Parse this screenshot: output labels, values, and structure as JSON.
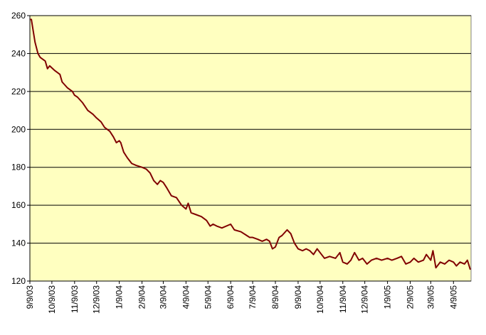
{
  "chart_data": {
    "type": "line",
    "x": [
      "9/9/03",
      "9/11/03",
      "9/16/03",
      "9/20/03",
      "9/23/03",
      "9/30/03",
      "10/3/03",
      "10/6/03",
      "10/13/03",
      "10/20/03",
      "10/23/03",
      "10/30/03",
      "11/6/03",
      "11/9/03",
      "11/13/03",
      "11/20/03",
      "11/27/03",
      "12/4/03",
      "12/9/03",
      "12/15/03",
      "12/20/03",
      "12/27/03",
      "1/1/04",
      "1/5/04",
      "1/9/04",
      "1/11/04",
      "1/15/04",
      "1/20/04",
      "1/26/04",
      "2/1/04",
      "2/9/04",
      "2/15/04",
      "2/20/04",
      "2/25/04",
      "3/1/04",
      "3/5/04",
      "3/9/04",
      "3/14/04",
      "3/20/04",
      "3/27/04",
      "4/3/04",
      "4/9/04",
      "4/12/04",
      "4/16/04",
      "4/23/04",
      "4/30/04",
      "5/7/04",
      "5/12/04",
      "5/16/04",
      "5/21/04",
      "5/28/04",
      "6/9/04",
      "6/14/04",
      "6/23/04",
      "7/1/04",
      "7/5/04",
      "7/9/04",
      "7/16/04",
      "7/22/04",
      "7/28/04",
      "8/1/04",
      "8/5/04",
      "8/9/04",
      "8/14/04",
      "8/18/04",
      "8/25/04",
      "8/30/04",
      "9/4/04",
      "9/9/04",
      "9/15/04",
      "9/20/04",
      "9/25/04",
      "9/30/04",
      "10/5/04",
      "10/9/04",
      "10/15/04",
      "10/22/04",
      "10/30/04",
      "11/5/04",
      "11/9/04",
      "11/15/04",
      "11/20/04",
      "11/25/04",
      "12/1/04",
      "12/6/04",
      "12/12/04",
      "12/18/04",
      "12/25/04",
      "1/1/05",
      "1/9/05",
      "1/15/05",
      "1/22/05",
      "1/28/05",
      "2/3/05",
      "2/9/05",
      "2/14/05",
      "2/20/05",
      "2/27/05",
      "3/3/05",
      "3/9/05",
      "3/12/05",
      "3/16/05",
      "3/22/05",
      "3/28/05",
      "4/3/05",
      "4/9/05",
      "4/13/05",
      "4/18/05",
      "4/24/05",
      "4/28/05",
      "5/2/05"
    ],
    "series": [
      {
        "color": "#800000",
        "values": [
          258,
          258,
          246,
          240,
          238,
          236,
          232,
          233.5,
          231,
          229,
          225,
          222,
          220,
          218,
          217,
          214,
          210,
          208,
          206,
          204,
          201,
          199,
          196,
          193,
          194,
          193,
          188,
          185,
          182,
          181,
          180,
          179,
          177,
          173,
          171,
          173,
          172,
          169,
          165,
          164,
          160,
          158,
          161,
          156,
          155,
          154,
          152,
          149,
          150,
          149,
          148,
          150,
          147,
          146,
          144,
          143,
          143,
          142,
          141,
          142,
          141,
          137,
          138,
          143,
          144,
          147,
          145,
          140,
          137,
          136,
          137,
          136,
          134,
          137,
          135,
          132,
          133,
          132,
          135,
          130,
          129,
          131,
          135,
          131,
          132,
          129,
          131,
          132,
          131,
          132,
          131,
          132,
          133,
          129,
          130,
          132,
          130,
          131,
          134,
          131,
          136,
          127,
          130,
          129,
          131,
          130,
          128,
          130,
          129,
          131,
          126
        ]
      }
    ],
    "xlim": [
      "9/9/03",
      "5/3/05"
    ],
    "xticks": [
      "9/9/03",
      "10/9/03",
      "11/9/03",
      "12/9/03",
      "1/9/04",
      "2/9/04",
      "3/9/04",
      "4/9/04",
      "5/9/04",
      "6/9/04",
      "7/9/04",
      "8/9/04",
      "9/9/04",
      "10/9/04",
      "11/9/04",
      "12/9/04",
      "1/9/05",
      "2/9/05",
      "3/9/05",
      "4/9/05"
    ],
    "ylim": [
      120,
      260
    ],
    "yticks": [
      120,
      140,
      160,
      180,
      200,
      220,
      240,
      260
    ],
    "grid": true,
    "background": "#ffffc0"
  }
}
